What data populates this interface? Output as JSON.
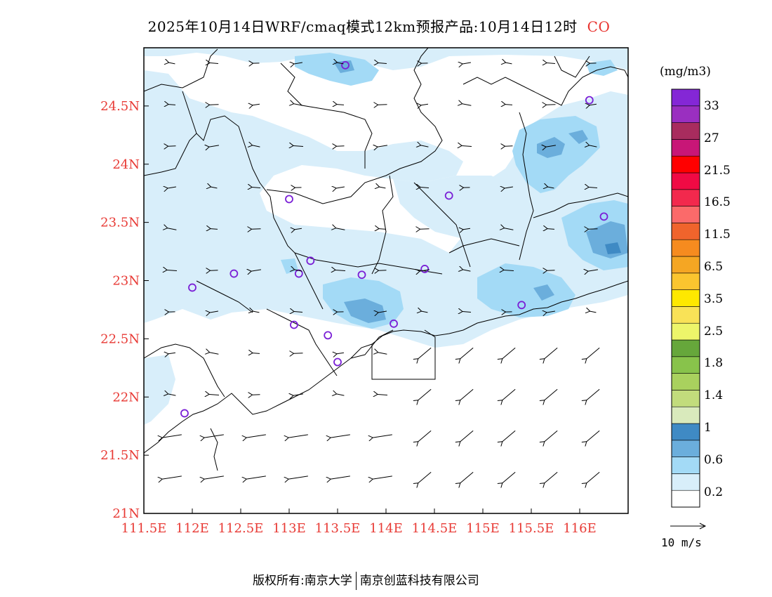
{
  "title": {
    "main": "2025年10月14日WRF/cmaq模式12km预报产品:10月14日12时",
    "variable": "CO"
  },
  "axes": {
    "lon_ticks": [
      "111.5E",
      "112E",
      "112.5E",
      "113E",
      "113.5E",
      "114E",
      "114.5E",
      "115E",
      "115.5E",
      "116E"
    ],
    "lat_ticks": [
      "24.5N",
      "24N",
      "23.5N",
      "23N",
      "22.5N",
      "22N",
      "21.5N",
      "21N"
    ]
  },
  "colorbar": {
    "unit": "(mg/m3)",
    "labels": [
      "33",
      "27",
      "21.5",
      "16.5",
      "11.5",
      "6.5",
      "3.5",
      "2.5",
      "1.8",
      "1.4",
      "1",
      "0.6",
      "0.2"
    ],
    "colors": [
      "#ffffff",
      "#d8eefa",
      "#a3daf6",
      "#6baedc",
      "#3f8ac4",
      "#d9eabc",
      "#c2dc7c",
      "#a9d15e",
      "#88c34b",
      "#66a73b",
      "#edf56a",
      "#f9e257",
      "#fee800",
      "#fbc52f",
      "#f5a623",
      "#f68b1f",
      "#f0642c",
      "#fb6a6a",
      "#f2294d",
      "#f00a44",
      "#ff0000",
      "#c81677",
      "#a82c5e",
      "#9a2fc0",
      "#8427d6"
    ]
  },
  "wind_scale": {
    "label": "10 m/s"
  },
  "stations": [
    {
      "lon": 113.58,
      "lat": 24.85
    },
    {
      "lon": 116.1,
      "lat": 24.55
    },
    {
      "lon": 113.0,
      "lat": 23.7
    },
    {
      "lon": 114.65,
      "lat": 23.73
    },
    {
      "lon": 116.25,
      "lat": 23.55
    },
    {
      "lon": 113.22,
      "lat": 23.17
    },
    {
      "lon": 112.43,
      "lat": 23.06
    },
    {
      "lon": 113.1,
      "lat": 23.06
    },
    {
      "lon": 113.75,
      "lat": 23.05
    },
    {
      "lon": 114.4,
      "lat": 23.1
    },
    {
      "lon": 112.0,
      "lat": 22.94
    },
    {
      "lon": 115.4,
      "lat": 22.79
    },
    {
      "lon": 113.05,
      "lat": 22.62
    },
    {
      "lon": 114.08,
      "lat": 22.63
    },
    {
      "lon": 113.4,
      "lat": 22.53
    },
    {
      "lon": 113.5,
      "lat": 22.3
    },
    {
      "lon": 111.92,
      "lat": 21.86
    }
  ],
  "footer": {
    "left": "版权所有:南京大学",
    "right": "南京创蓝科技有限公司"
  }
}
